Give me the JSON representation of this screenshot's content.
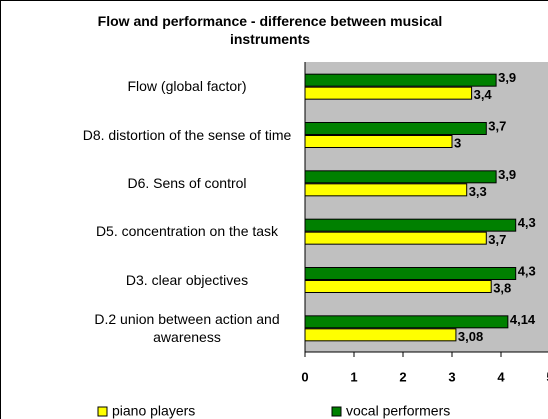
{
  "chart_data": {
    "type": "hbar",
    "title": "Flow and performance - difference between musical instruments",
    "categories": [
      "Flow (global factor)",
      "D8. distortion of the sense of time",
      "D6. Sens of control",
      "D5. concentration on the task",
      "D3. clear objectives",
      "D.2 union between action and awareness"
    ],
    "series": [
      {
        "name": "vocal performers",
        "color": "#008000",
        "values": [
          3.9,
          3.7,
          3.9,
          4.3,
          4.3,
          4.14
        ],
        "value_labels": [
          "3,9",
          "3,7",
          "3,9",
          "4,3",
          "4,3",
          "4,14"
        ]
      },
      {
        "name": "piano players",
        "color": "#ffff00",
        "values": [
          3.4,
          3,
          3.3,
          3.7,
          3.8,
          3.08
        ],
        "value_labels": [
          "3,4",
          "3",
          "3,3",
          "3,7",
          "3,8",
          "3,08"
        ]
      }
    ],
    "legend_order": [
      1,
      0
    ],
    "xlim": [
      0,
      5
    ],
    "xticks": [
      0,
      1,
      2,
      3,
      4,
      5
    ],
    "plot_background": "#c0c0c0"
  }
}
